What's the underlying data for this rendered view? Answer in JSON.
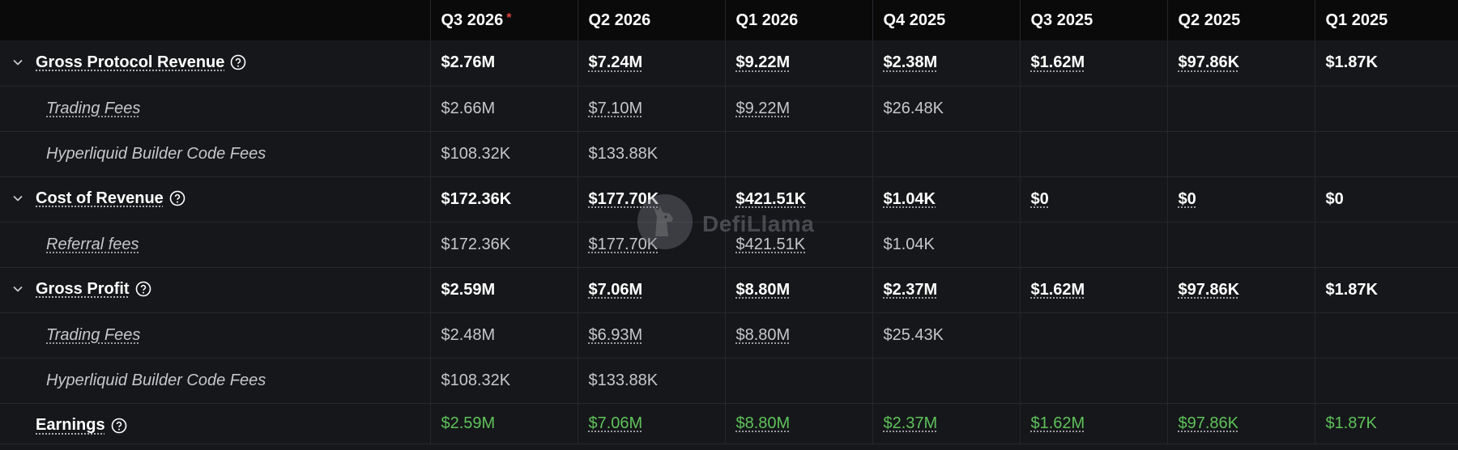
{
  "header": {
    "columns": [
      "Q3 2026",
      "Q2 2026",
      "Q1 2026",
      "Q4 2025",
      "Q3 2025",
      "Q2 2025",
      "Q1 2025"
    ],
    "star": "*"
  },
  "rows": {
    "gross_protocol_revenue": {
      "label": "Gross Protocol Revenue",
      "values": [
        "$2.76M",
        "$7.24M",
        "$9.22M",
        "$2.38M",
        "$1.62M",
        "$97.86K",
        "$1.87K"
      ]
    },
    "gpr_trading_fees": {
      "label": "Trading Fees",
      "values": [
        "$2.66M",
        "$7.10M",
        "$9.22M",
        "$26.48K",
        "",
        "",
        ""
      ]
    },
    "gpr_builder_code_fees": {
      "label": "Hyperliquid Builder Code Fees",
      "values": [
        "$108.32K",
        "$133.88K",
        "",
        "",
        "",
        "",
        ""
      ]
    },
    "cost_of_revenue": {
      "label": "Cost of Revenue",
      "values": [
        "$172.36K",
        "$177.70K",
        "$421.51K",
        "$1.04K",
        "$0",
        "$0",
        "$0"
      ]
    },
    "cor_referral_fees": {
      "label": "Referral fees",
      "values": [
        "$172.36K",
        "$177.70K",
        "$421.51K",
        "$1.04K",
        "",
        "",
        ""
      ]
    },
    "gross_profit": {
      "label": "Gross Profit",
      "values": [
        "$2.59M",
        "$7.06M",
        "$8.80M",
        "$2.37M",
        "$1.62M",
        "$97.86K",
        "$1.87K"
      ]
    },
    "gp_trading_fees": {
      "label": "Trading Fees",
      "values": [
        "$2.48M",
        "$6.93M",
        "$8.80M",
        "$25.43K",
        "",
        "",
        ""
      ]
    },
    "gp_builder_code_fees": {
      "label": "Hyperliquid Builder Code Fees",
      "values": [
        "$108.32K",
        "$133.88K",
        "",
        "",
        "",
        "",
        ""
      ]
    },
    "earnings": {
      "label": "Earnings",
      "values": [
        "$2.59M",
        "$7.06M",
        "$8.80M",
        "$2.37M",
        "$1.62M",
        "$97.86K",
        "$1.87K"
      ]
    }
  },
  "watermark": {
    "text": "DefiLlama",
    "icon": "llama-logo-icon"
  },
  "colors": {
    "positive": "#5ec25a",
    "header_bg": "#0a0a0b",
    "row_bg": "#16171a",
    "asterisk": "#e0443e"
  }
}
